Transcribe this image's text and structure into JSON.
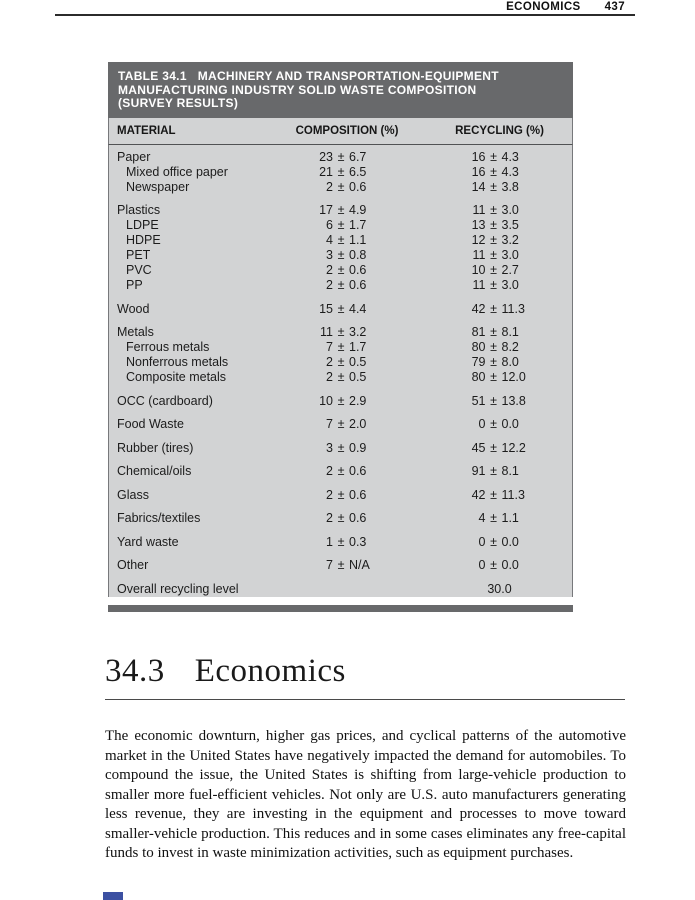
{
  "page_header": {
    "section_label": "ECONOMICS",
    "page_number": "437"
  },
  "table": {
    "title_lines": [
      "TABLE 34.1   MACHINERY AND TRANSPORTATION-EQUIPMENT",
      "MANUFACTURING INDUSTRY SOLID WASTE COMPOSITION",
      "(SURVEY RESULTS)"
    ],
    "columns": [
      "MATERIAL",
      "COMPOSITION (%)",
      "RECYCLING (%)"
    ],
    "plus_minus": "±",
    "groups": [
      {
        "rows": [
          {
            "material": "Paper",
            "indent": false,
            "comp": {
              "val": "23",
              "err": "6.7"
            },
            "rec": {
              "val": "16",
              "err": "4.3"
            }
          },
          {
            "material": "Mixed office paper",
            "indent": true,
            "comp": {
              "val": "21",
              "err": "6.5"
            },
            "rec": {
              "val": "16",
              "err": "4.3"
            }
          },
          {
            "material": "Newspaper",
            "indent": true,
            "comp": {
              "val": "2",
              "err": "0.6"
            },
            "rec": {
              "val": "14",
              "err": "3.8"
            }
          }
        ]
      },
      {
        "rows": [
          {
            "material": "Plastics",
            "indent": false,
            "comp": {
              "val": "17",
              "err": "4.9"
            },
            "rec": {
              "val": "11",
              "err": "3.0"
            }
          },
          {
            "material": "LDPE",
            "indent": true,
            "comp": {
              "val": "6",
              "err": "1.7"
            },
            "rec": {
              "val": "13",
              "err": "3.5"
            }
          },
          {
            "material": "HDPE",
            "indent": true,
            "comp": {
              "val": "4",
              "err": "1.1"
            },
            "rec": {
              "val": "12",
              "err": "3.2"
            }
          },
          {
            "material": "PET",
            "indent": true,
            "comp": {
              "val": "3",
              "err": "0.8"
            },
            "rec": {
              "val": "11",
              "err": "3.0"
            }
          },
          {
            "material": "PVC",
            "indent": true,
            "comp": {
              "val": "2",
              "err": "0.6"
            },
            "rec": {
              "val": "10",
              "err": "2.7"
            }
          },
          {
            "material": "PP",
            "indent": true,
            "comp": {
              "val": "2",
              "err": "0.6"
            },
            "rec": {
              "val": "11",
              "err": "3.0"
            }
          }
        ]
      },
      {
        "rows": [
          {
            "material": "Wood",
            "indent": false,
            "comp": {
              "val": "15",
              "err": "4.4"
            },
            "rec": {
              "val": "42",
              "err": "11.3"
            }
          }
        ]
      },
      {
        "rows": [
          {
            "material": "Metals",
            "indent": false,
            "comp": {
              "val": "11",
              "err": "3.2"
            },
            "rec": {
              "val": "81",
              "err": "8.1"
            }
          },
          {
            "material": "Ferrous metals",
            "indent": true,
            "comp": {
              "val": "7",
              "err": "1.7"
            },
            "rec": {
              "val": "80",
              "err": "8.2"
            }
          },
          {
            "material": "Nonferrous metals",
            "indent": true,
            "comp": {
              "val": "2",
              "err": "0.5"
            },
            "rec": {
              "val": "79",
              "err": "8.0"
            }
          },
          {
            "material": "Composite metals",
            "indent": true,
            "comp": {
              "val": "2",
              "err": "0.5"
            },
            "rec": {
              "val": "80",
              "err": "12.0"
            }
          }
        ]
      },
      {
        "rows": [
          {
            "material": "OCC (cardboard)",
            "indent": false,
            "comp": {
              "val": "10",
              "err": "2.9"
            },
            "rec": {
              "val": "51",
              "err": "13.8"
            }
          }
        ]
      },
      {
        "rows": [
          {
            "material": "Food Waste",
            "indent": false,
            "comp": {
              "val": "7",
              "err": "2.0"
            },
            "rec": {
              "val": "0",
              "err": "0.0"
            }
          }
        ]
      },
      {
        "rows": [
          {
            "material": "Rubber (tires)",
            "indent": false,
            "comp": {
              "val": "3",
              "err": "0.9"
            },
            "rec": {
              "val": "45",
              "err": "12.2"
            }
          }
        ]
      },
      {
        "rows": [
          {
            "material": "Chemical/oils",
            "indent": false,
            "comp": {
              "val": "2",
              "err": "0.6"
            },
            "rec": {
              "val": "91",
              "err": "8.1"
            }
          }
        ]
      },
      {
        "rows": [
          {
            "material": "Glass",
            "indent": false,
            "comp": {
              "val": "2",
              "err": "0.6"
            },
            "rec": {
              "val": "42",
              "err": "11.3"
            }
          }
        ]
      },
      {
        "rows": [
          {
            "material": "Fabrics/textiles",
            "indent": false,
            "comp": {
              "val": "2",
              "err": "0.6"
            },
            "rec": {
              "val": "4",
              "err": "1.1"
            }
          }
        ]
      },
      {
        "rows": [
          {
            "material": "Yard waste",
            "indent": false,
            "comp": {
              "val": "1",
              "err": "0.3"
            },
            "rec": {
              "val": "0",
              "err": "0.0"
            }
          }
        ]
      },
      {
        "rows": [
          {
            "material": "Other",
            "indent": false,
            "comp": {
              "val": "7",
              "err": "N/A"
            },
            "rec": {
              "val": "0",
              "err": "0.0"
            }
          }
        ]
      },
      {
        "rows": [
          {
            "material": "Overall recycling level",
            "indent": false,
            "comp": null,
            "rec": {
              "val": "30.0",
              "err": null
            }
          }
        ]
      }
    ]
  },
  "section": {
    "number": "34.3",
    "title": "Economics",
    "paragraph": "The economic downturn, higher gas prices, and cyclical patterns of the automotive market in the United States have negatively impacted the demand for automobiles. To compound the issue, the United States is shifting from large-vehicle production to smaller more fuel-efficient vehicles. Not only are U.S. auto manufacturers generating less revenue, they are investing in the equipment and processes to move toward smaller-vehicle production. This reduces and in some cases eliminates any free-capital funds to invest in waste minimization activities, such as equipment purchases."
  },
  "colors": {
    "table_banner": "#68696b",
    "table_body": "#d2d3d4",
    "figure_fragment_blue": "#3c50a2"
  }
}
